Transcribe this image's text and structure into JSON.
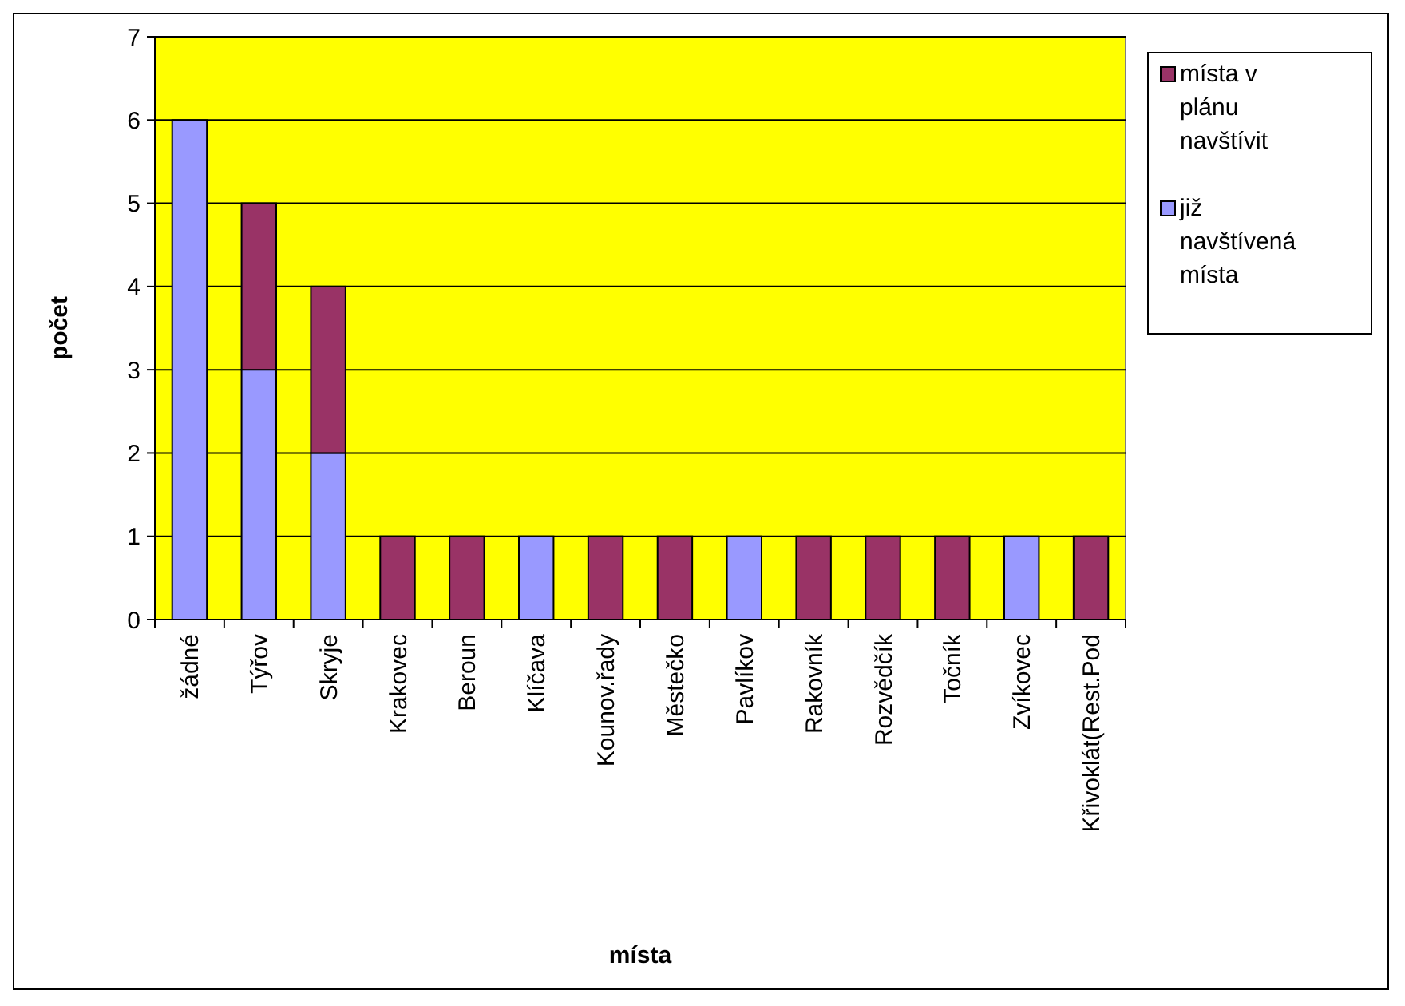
{
  "chart_data": {
    "type": "bar",
    "stacked": true,
    "xlabel": "místa",
    "ylabel": "počet",
    "categories": [
      "žádné",
      "Týřov",
      "Skryje",
      "Krakovec",
      "Beroun",
      "Klíčava",
      "Kounov.řady",
      "Městečko",
      "Pavlíkov",
      "Rakovník",
      "Rozvědčík",
      "Točník",
      "Zvíkovec",
      "Křivoklát(Rest.Pod"
    ],
    "series": [
      {
        "name": "již navštívená místa",
        "color": "#9999ff",
        "values": [
          6,
          3,
          2,
          0,
          0,
          1,
          0,
          0,
          1,
          0,
          0,
          0,
          1,
          0
        ]
      },
      {
        "name": "místa v plánu navštívit",
        "color": "#993366",
        "values": [
          0,
          2,
          2,
          1,
          1,
          0,
          1,
          1,
          0,
          1,
          1,
          1,
          0,
          1
        ]
      }
    ],
    "ylim": [
      0,
      7
    ],
    "yticks": [
      0,
      1,
      2,
      3,
      4,
      5,
      6,
      7
    ],
    "grid": "y",
    "legend": "right"
  }
}
